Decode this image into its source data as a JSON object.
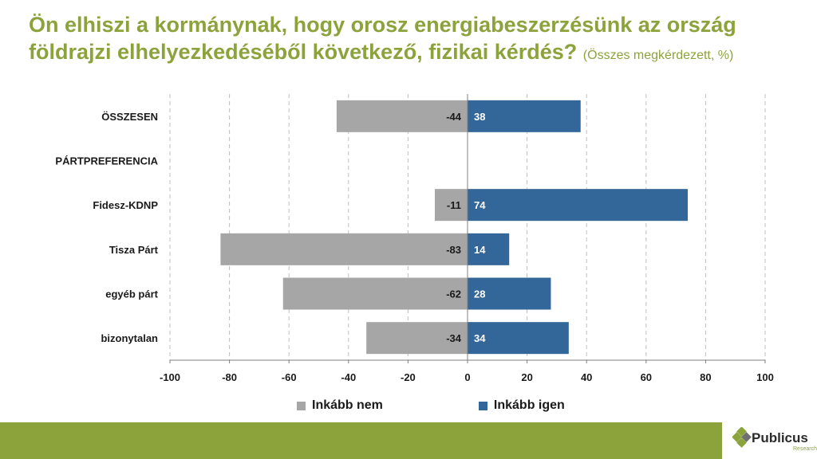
{
  "title": {
    "main": "Ön elhiszi a kormánynak, hogy orosz energiabeszerzésünk az ország földrajzi elhelyezkedéséből következő, fizikai kérdés?",
    "note": "(Összes megkérdezett, %)"
  },
  "colors": {
    "accent": "#8CA33B",
    "no": "#A6A6A6",
    "yes": "#336699"
  },
  "chart_data": {
    "type": "bar",
    "orientation": "horizontal",
    "stacked": "diverging",
    "categories": [
      "ÖSSZESEN",
      "PÁRTPREFERENCIA",
      "Fidesz-KDNP",
      "Tisza Párt",
      "egyéb párt",
      "bizonytalan"
    ],
    "series": [
      {
        "name": "Inkább nem",
        "values": [
          -44,
          null,
          -11,
          -83,
          -62,
          -34
        ],
        "color": "#A6A6A6"
      },
      {
        "name": "Inkább igen",
        "values": [
          38,
          null,
          74,
          14,
          28,
          34
        ],
        "color": "#336699"
      }
    ],
    "xlim": [
      -100,
      100
    ],
    "xticks": [
      -100,
      -80,
      -60,
      -40,
      -20,
      0,
      20,
      40,
      60,
      80,
      100
    ],
    "xlabel": "",
    "ylabel": "",
    "grid": "vertical dashed",
    "legend_position": "bottom"
  },
  "logo": {
    "name": "Publicus",
    "sub": "Research"
  }
}
